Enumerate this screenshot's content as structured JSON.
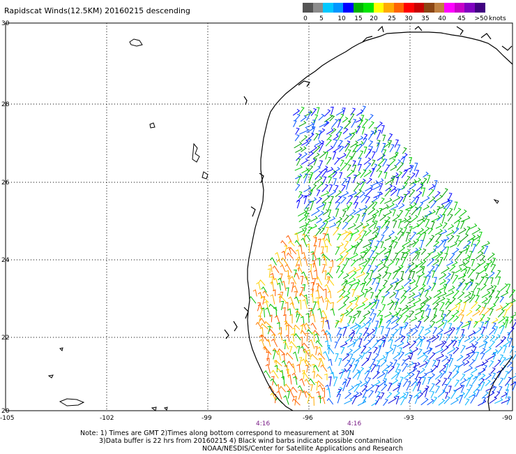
{
  "title": "Rapidscat Winds(12.5KM) 20160215 descending",
  "legend": {
    "colors": [
      "#555555",
      "#8c8c8c",
      "#00c8ff",
      "#0096ff",
      "#0000ff",
      "#00b400",
      "#00e600",
      "#ffff00",
      "#ffaa00",
      "#ff6400",
      "#ff0000",
      "#c80000",
      "#8b4513",
      "#c08040",
      "#ff00ff",
      "#c800c8",
      "#8000c0",
      "#400080"
    ],
    "labels": [
      "0",
      "5",
      "10",
      "15",
      "20",
      "25",
      "30",
      "35",
      "40",
      "45",
      ">50"
    ],
    "units": "knots"
  },
  "map": {
    "lat_labels": [
      "30",
      "28",
      "26",
      "24",
      "22",
      "20"
    ],
    "lon_labels": [
      "-105",
      "-102",
      "-99",
      "-96",
      "-93",
      "-90"
    ],
    "time_labels": [
      "4:16",
      "4:16"
    ]
  },
  "notes": {
    "line1": "Note: 1) Times are GMT 2)Times along bottom correspond to measurement at 30N",
    "line2": "3)Data buffer is 22 hrs from 20160215 4) Black wind barbs indicate possible contamination",
    "line3": "NOAA/NESDIS/Center for Satellite Applications and Research"
  }
}
